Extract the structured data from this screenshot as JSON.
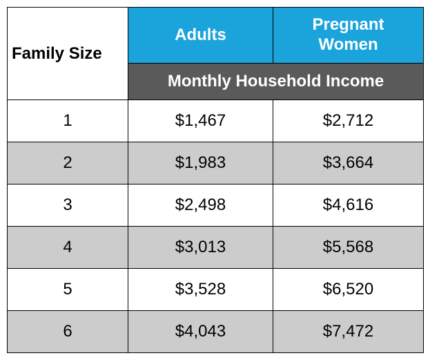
{
  "table": {
    "type": "table",
    "header": {
      "family_size": "Family Size",
      "adults": "Adults",
      "pregnant_women": "Pregnant\nWomen",
      "subheader": "Monthly Household Income"
    },
    "columns": [
      "family_size",
      "adults",
      "pregnant_women"
    ],
    "rows": [
      {
        "family_size": "1",
        "adults": "$1,467",
        "pregnant_women": "$2,712"
      },
      {
        "family_size": "2",
        "adults": "$1,983",
        "pregnant_women": "$3,664"
      },
      {
        "family_size": "3",
        "adults": "$2,498",
        "pregnant_women": "$4,616"
      },
      {
        "family_size": "4",
        "adults": "$3,013",
        "pregnant_women": "$5,568"
      },
      {
        "family_size": "5",
        "adults": "$3,528",
        "pregnant_women": "$6,520"
      },
      {
        "family_size": "6",
        "adults": "$4,043",
        "pregnant_women": "$7,472"
      }
    ],
    "colors": {
      "header_bg": "#1ba3dc",
      "header_text": "#ffffff",
      "subheader_bg": "#5a5a5a",
      "subheader_text": "#ffffff",
      "row_alt_bg": "#cccccc",
      "row_bg": "#ffffff",
      "border": "#000000",
      "text": "#000000"
    },
    "font_sizes": {
      "header": 24,
      "cell": 24
    }
  }
}
